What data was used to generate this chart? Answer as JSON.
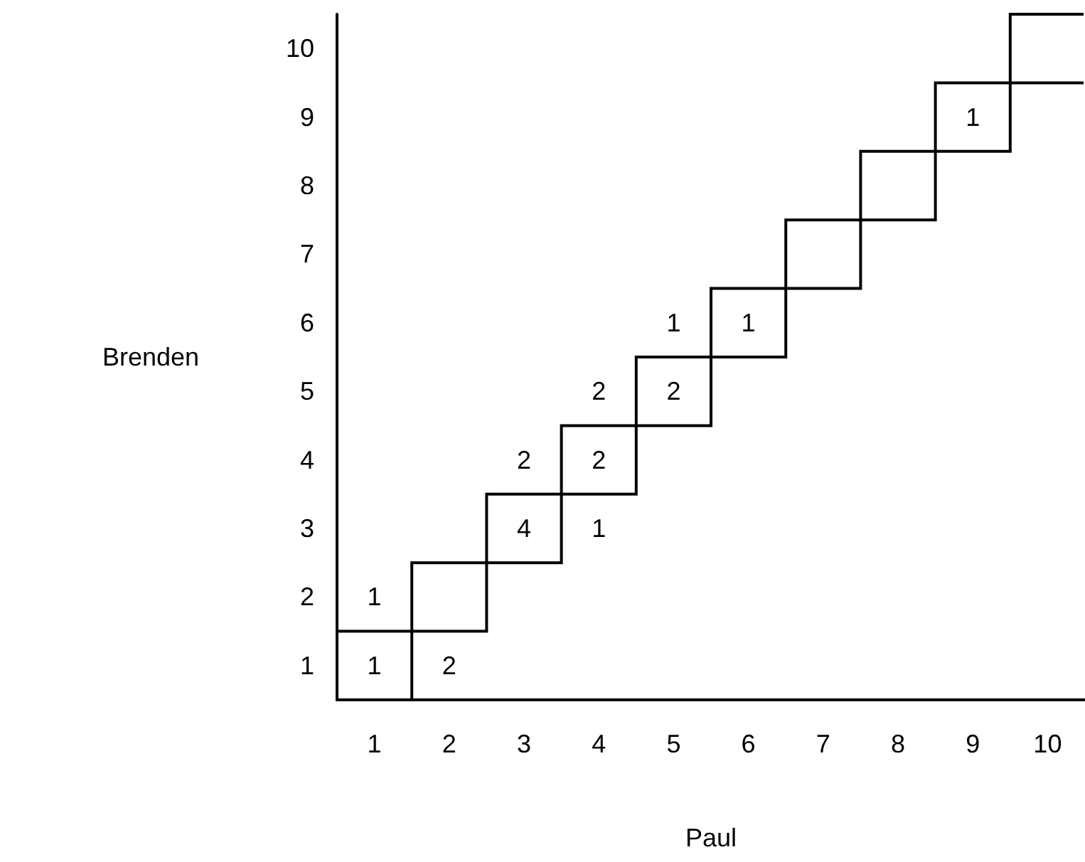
{
  "chart_data": {
    "type": "heatmap",
    "xlabel": "Paul",
    "ylabel": "Brenden",
    "data_labels": true,
    "categories": [
      "1",
      "2",
      "3",
      "4",
      "5",
      "6",
      "7",
      "8",
      "9",
      "10"
    ],
    "y_categories": [
      "10",
      "9",
      "8",
      "7",
      "6",
      "5",
      "4",
      "3",
      "2",
      "1"
    ],
    "cells": [
      [
        null,
        null,
        null,
        null,
        null,
        null,
        null,
        null,
        null,
        null
      ],
      [
        null,
        null,
        null,
        null,
        null,
        null,
        null,
        null,
        1,
        null
      ],
      [
        null,
        null,
        null,
        null,
        null,
        null,
        null,
        null,
        null,
        null
      ],
      [
        null,
        null,
        null,
        null,
        null,
        null,
        null,
        null,
        null,
        null
      ],
      [
        null,
        null,
        null,
        null,
        1,
        1,
        null,
        null,
        null,
        null
      ],
      [
        null,
        null,
        null,
        2,
        2,
        null,
        null,
        null,
        null,
        null
      ],
      [
        null,
        null,
        2,
        2,
        null,
        null,
        null,
        null,
        null,
        null
      ],
      [
        null,
        null,
        4,
        1,
        null,
        null,
        null,
        null,
        null,
        null
      ],
      [
        1,
        null,
        null,
        null,
        null,
        null,
        null,
        null,
        null,
        null
      ],
      [
        1,
        2,
        null,
        null,
        null,
        null,
        null,
        null,
        null,
        null
      ]
    ]
  }
}
